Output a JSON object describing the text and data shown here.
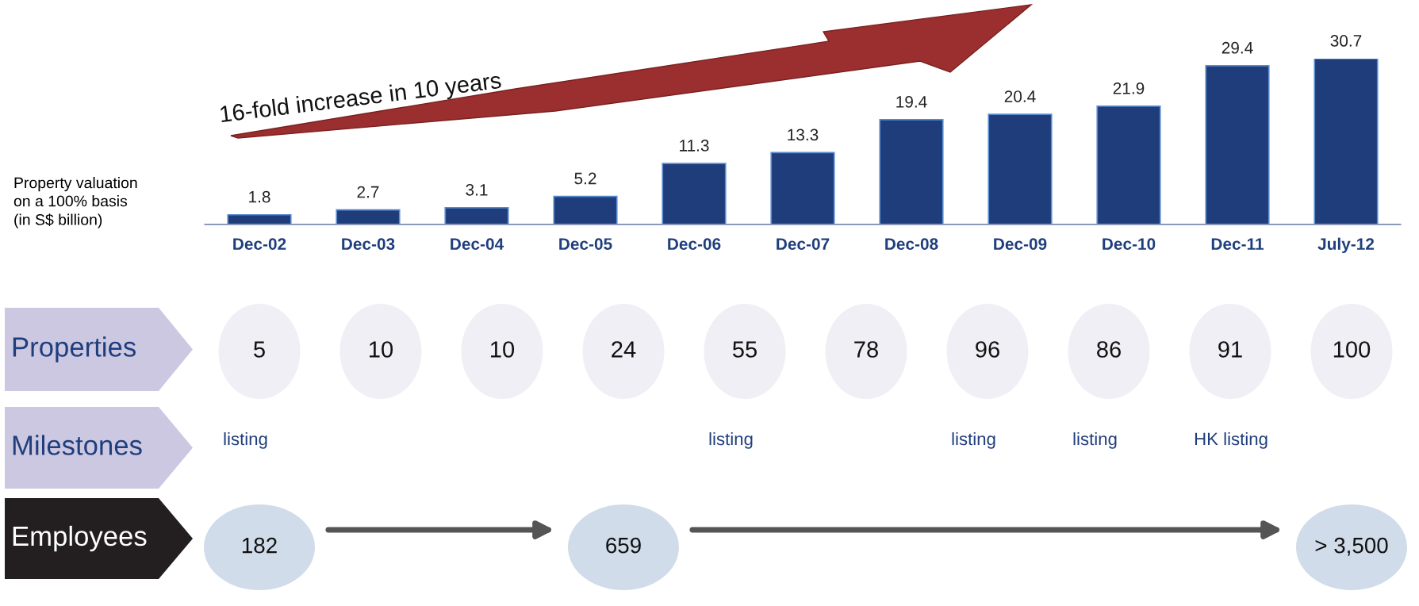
{
  "chart_data": [
    {
      "type": "bar",
      "categories": [
        "Dec-02",
        "Dec-03",
        "Dec-04",
        "Dec-05",
        "Dec-06",
        "Dec-07",
        "Dec-08",
        "Dec-09",
        "Dec-10",
        "Dec-11",
        "July-12"
      ],
      "values": [
        1.8,
        2.7,
        3.1,
        5.2,
        11.3,
        13.3,
        19.4,
        20.4,
        21.9,
        29.4,
        30.7
      ],
      "color": "#1f3d7a",
      "data_labels": true,
      "ylabel": "Property valuation\non a 100% basis\n(in S$ billion)",
      "annotations": [
        "16-fold increase in 10 years"
      ]
    },
    {
      "type": "other",
      "title": "Properties",
      "categories": [
        null,
        null,
        null,
        null,
        null,
        null,
        null,
        null,
        null,
        null
      ],
      "values": [
        5,
        10,
        10,
        24,
        55,
        78,
        96,
        86,
        91,
        100
      ],
      "color": "#efeff5",
      "data_labels": true
    },
    {
      "type": "other",
      "title": "Milestones",
      "categories": [
        "listing",
        null,
        null,
        null,
        "listing",
        null,
        "listing",
        "listing",
        "HK listing",
        null
      ]
    },
    {
      "type": "other",
      "title": "Employees",
      "categories": [
        null,
        null,
        null,
        null,
        null,
        null,
        null,
        null,
        null,
        null
      ],
      "values": [
        182,
        null,
        null,
        659,
        null,
        null,
        null,
        null,
        null,
        3500
      ],
      "color": "#d0dce9",
      "value_labels": [
        "182",
        null,
        null,
        "659",
        null,
        null,
        null,
        null,
        null,
        "> 3,500"
      ]
    }
  ]
}
